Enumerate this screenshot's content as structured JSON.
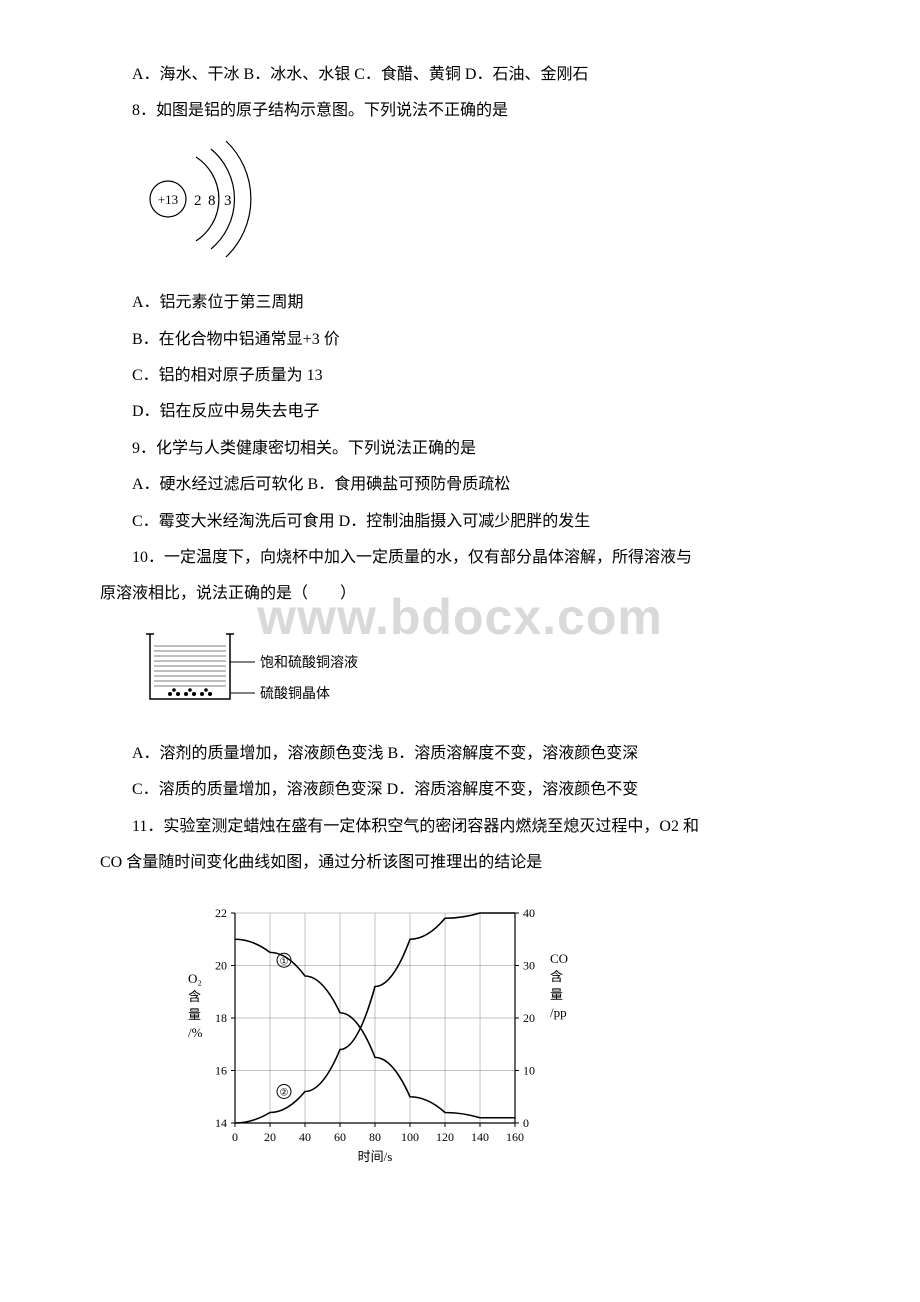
{
  "watermark": "www.bdocx.com",
  "q7options": "A．海水、干冰 B．冰水、水银 C．食醋、黄铜 D．石油、金刚石",
  "q8stem": "8．如图是铝的原子结构示意图。下列说法不正确的是",
  "atom": {
    "nucleus": "+13",
    "shells": [
      "2",
      "8",
      "3"
    ]
  },
  "q8a": "A．铝元素位于第三周期",
  "q8b": "B．在化合物中铝通常显+3 价",
  "q8c": "C．铝的相对原子质量为 13",
  "q8d": "D．铝在反应中易失去电子",
  "q9stem": "9．化学与人类健康密切相关。下列说法正确的是",
  "q9ab": "A．硬水经过滤后可软化 B．食用碘盐可预防骨质疏松",
  "q9cd": "C．霉变大米经淘洗后可食用 D．控制油脂摄入可减少肥胖的发生",
  "q10stem1": "10．一定温度下，向烧杯中加入一定质量的水，仅有部分晶体溶解，所得溶液与",
  "q10stem2": "原溶液相比，说法正确的是（　　）",
  "beaker": {
    "label1": "饱和硫酸铜溶液",
    "label2": "硫酸铜晶体"
  },
  "q10ab": "A．溶剂的质量增加，溶液颜色变浅 B．溶质溶解度不变，溶液颜色变深",
  "q10cd": "C．溶质的质量增加，溶液颜色变深 D．溶质溶解度不变，溶液颜色不变",
  "q11stem1": "11．实验室测定蜡烛在盛有一定体积空气的密闭容器内燃烧至熄灭过程中，O2 和",
  "q11stem2": "CO 含量随时间变化曲线如图，通过分析该图可推理出的结论是",
  "chart": {
    "y1label": "O₂含量/%",
    "y2label": "CO含量/pp",
    "xlabel": "时间/s",
    "y1ticks": [
      14,
      16,
      18,
      20,
      22
    ],
    "y2ticks": [
      0,
      10,
      20,
      30,
      40
    ],
    "xticks": [
      0,
      20,
      40,
      60,
      80,
      100,
      120,
      140,
      160
    ],
    "o2_curve": [
      [
        0,
        21
      ],
      [
        20,
        20.5
      ],
      [
        40,
        19.6
      ],
      [
        60,
        18.2
      ],
      [
        80,
        16.5
      ],
      [
        100,
        15.0
      ],
      [
        120,
        14.4
      ],
      [
        140,
        14.2
      ],
      [
        160,
        14.2
      ]
    ],
    "co_curve": [
      [
        0,
        0
      ],
      [
        20,
        2
      ],
      [
        40,
        6
      ],
      [
        60,
        14
      ],
      [
        80,
        26
      ],
      [
        100,
        35
      ],
      [
        120,
        39
      ],
      [
        140,
        40
      ],
      [
        160,
        40
      ]
    ],
    "marker1": "①",
    "marker2": "②",
    "marker1_pos": [
      28,
      20.2
    ],
    "marker2_pos": [
      28,
      15.2
    ],
    "grid_color": "#888888",
    "line_color": "#000000"
  }
}
